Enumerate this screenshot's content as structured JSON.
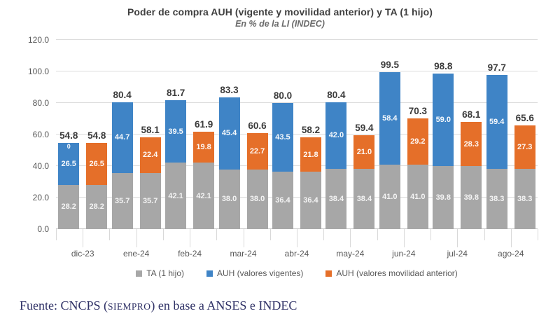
{
  "chart_data": {
    "type": "bar",
    "subtype": "paired-stacked-columns",
    "title": "Poder de compra AUH (vigente y movilidad anterior) y TA (1 hijo)",
    "subtitle": "En % de la LI (INDEC)",
    "categories": [
      "dic-23",
      "ene-24",
      "feb-24",
      "mar-24",
      "abr-24",
      "may-24",
      "jun-24",
      "jul-24",
      "ago-24"
    ],
    "series": [
      {
        "name": "TA (1 hijo)",
        "color": "#a7a7a7",
        "values": [
          28.2,
          35.7,
          42.1,
          38.0,
          36.4,
          38.4,
          41.0,
          39.8,
          38.3
        ]
      },
      {
        "name": "AUH (valores vigentes)",
        "color": "#3f84c6",
        "values": [
          26.5,
          44.7,
          39.5,
          45.4,
          43.5,
          42.0,
          58.4,
          59.0,
          59.4
        ]
      },
      {
        "name": "AUH (valores movilidad anterior)",
        "color": "#e56f29",
        "values": [
          26.5,
          22.4,
          19.8,
          22.7,
          21.8,
          21.0,
          29.2,
          28.3,
          27.3
        ]
      }
    ],
    "pair_totals": {
      "vigente": [
        54.8,
        80.4,
        81.7,
        83.3,
        80.0,
        80.4,
        99.5,
        98.8,
        97.7
      ],
      "movilidad_anterior": [
        54.8,
        58.1,
        61.9,
        60.6,
        58.2,
        59.4,
        70.3,
        68.1,
        65.6
      ]
    },
    "annotations": [
      {
        "category_index": 0,
        "bar": "vigente",
        "label": "0"
      }
    ],
    "y_axis": {
      "min": 0,
      "max": 120,
      "step": 20,
      "tick_labels": [
        "0.0",
        "20.0",
        "40.0",
        "60.0",
        "80.0",
        "100.0",
        "120.0"
      ]
    },
    "grid": true,
    "legend_position": "bottom",
    "xlabel": "",
    "ylabel": ""
  },
  "footer": {
    "source_prefix": "Fuente: CNCPS (",
    "source_smallcaps": "SIEMPRO",
    "source_suffix": ") en base a ANSES e INDEC",
    "color": "#2f3166"
  }
}
